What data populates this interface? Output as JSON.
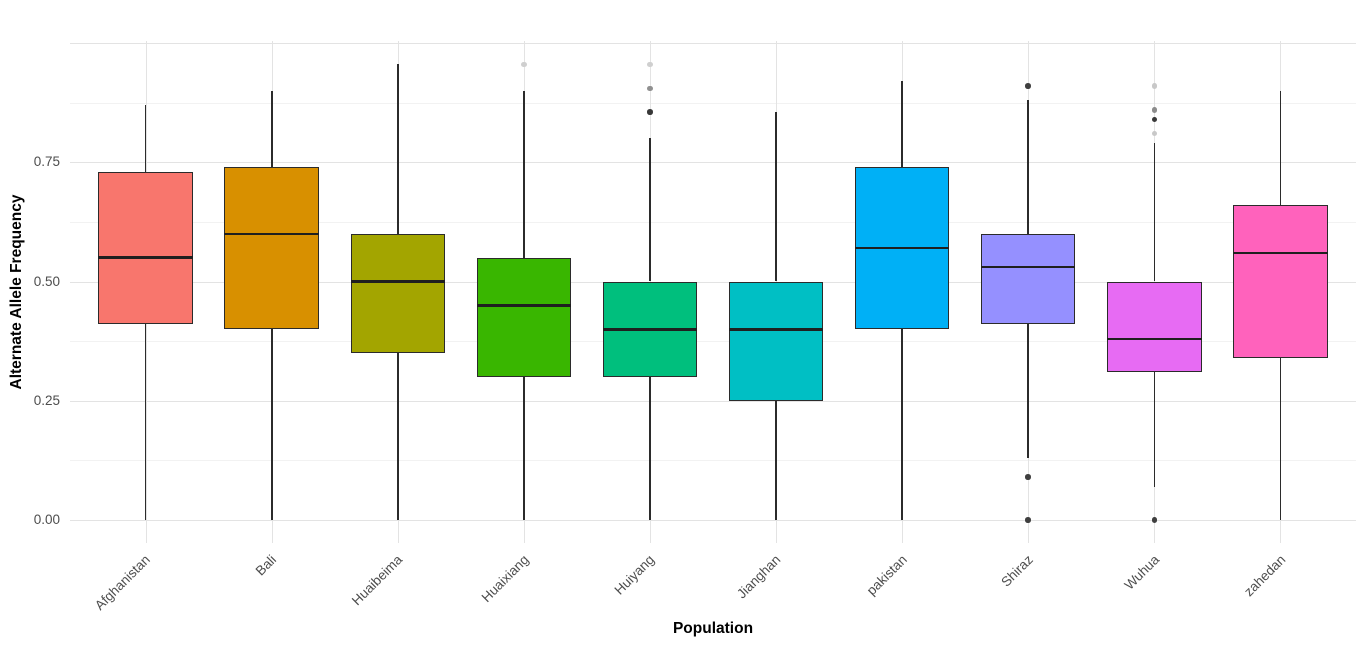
{
  "figure": {
    "y_axis_title": "Alternate Allele Frequency",
    "x_axis_title": "Population",
    "y_tick_labels": [
      "0.00",
      "0.25",
      "0.50",
      "0.75"
    ]
  },
  "colors": {
    "background": "#ffffff",
    "grid_major": "#e3e3e3",
    "grid_minor": "#f2f2f2",
    "box_stroke": "#2b2b2b",
    "median_line": "#1f1f1f",
    "tick_text": "#4d4d4d",
    "axis_title_text": "#000000"
  },
  "chart_data": {
    "type": "boxplot",
    "title": "",
    "xlabel": "Population",
    "ylabel": "Alternate Allele Frequency",
    "ylim": [
      -0.048,
      1.004
    ],
    "yticks": [
      0,
      0.25,
      0.5,
      0.75
    ],
    "y_grid_major": [
      0,
      0.25,
      0.5,
      0.75,
      1.0
    ],
    "y_grid_minor": [
      0.125,
      0.375,
      0.625,
      0.875
    ],
    "legend": "none",
    "grid": "horizontal major+minor, vertical major at each category",
    "categories": [
      "Afghanistan",
      "Bali",
      "Huaibeima",
      "Huaixiang",
      "Huiyang",
      "Jianghan",
      "pakistan",
      "Shiraz",
      "Wuhua",
      "zahedan"
    ],
    "series": [
      {
        "population": "Afghanistan",
        "color": "#F8766D",
        "whisker_low": 0.0,
        "q1": 0.41,
        "median": 0.55,
        "q3": 0.73,
        "whisker_high": 0.87,
        "outliers": []
      },
      {
        "population": "Bali",
        "color": "#D89000",
        "whisker_low": 0.0,
        "q1": 0.4,
        "median": 0.6,
        "q3": 0.74,
        "whisker_high": 0.9,
        "outliers": []
      },
      {
        "population": "Huaibeima",
        "color": "#A3A500",
        "whisker_low": 0.0,
        "q1": 0.35,
        "median": 0.5,
        "q3": 0.6,
        "whisker_high": 0.955,
        "outliers": []
      },
      {
        "population": "Huaixiang",
        "color": "#39B600",
        "whisker_low": 0.0,
        "q1": 0.3,
        "median": 0.45,
        "q3": 0.55,
        "whisker_high": 0.9,
        "outliers": [
          {
            "value": 0.955,
            "color": "#cfcfcf"
          }
        ]
      },
      {
        "population": "Huiyang",
        "color": "#00BF7D",
        "whisker_low": 0.0,
        "q1": 0.3,
        "median": 0.4,
        "q3": 0.5,
        "whisker_high": 0.8,
        "outliers": [
          {
            "value": 0.955,
            "color": "#cfcfcf"
          },
          {
            "value": 0.905,
            "color": "#909090"
          },
          {
            "value": 0.855,
            "color": "#383838"
          }
        ]
      },
      {
        "population": "Jianghan",
        "color": "#00BFC4",
        "whisker_low": 0.0,
        "q1": 0.25,
        "median": 0.4,
        "q3": 0.5,
        "whisker_high": 0.855,
        "outliers": []
      },
      {
        "population": "pakistan",
        "color": "#00B0F6",
        "whisker_low": 0.0,
        "q1": 0.4,
        "median": 0.57,
        "q3": 0.74,
        "whisker_high": 0.92,
        "outliers": []
      },
      {
        "population": "Shiraz",
        "color": "#9590FF",
        "whisker_low": 0.13,
        "q1": 0.41,
        "median": 0.53,
        "q3": 0.6,
        "whisker_high": 0.88,
        "outliers": [
          {
            "value": 0.91,
            "color": "#3f3f3f"
          },
          {
            "value": 0.09,
            "color": "#3f3f3f"
          },
          {
            "value": 0.0,
            "color": "#3f3f3f"
          }
        ]
      },
      {
        "population": "Wuhua",
        "color": "#E76BF3",
        "whisker_low": 0.07,
        "q1": 0.31,
        "median": 0.38,
        "q3": 0.5,
        "whisker_high": 0.79,
        "outliers": [
          {
            "value": 0.91,
            "color": "#c8c8c8"
          },
          {
            "value": 0.86,
            "color": "#8c8c8c"
          },
          {
            "value": 0.84,
            "color": "#383838"
          },
          {
            "value": 0.81,
            "color": "#c8c8c8"
          },
          {
            "value": 0.0,
            "color": "#3f3f3f"
          }
        ]
      },
      {
        "population": "zahedan",
        "color": "#FF62BC",
        "whisker_low": 0.0,
        "q1": 0.34,
        "median": 0.56,
        "q3": 0.66,
        "whisker_high": 0.9,
        "outliers": []
      }
    ]
  }
}
